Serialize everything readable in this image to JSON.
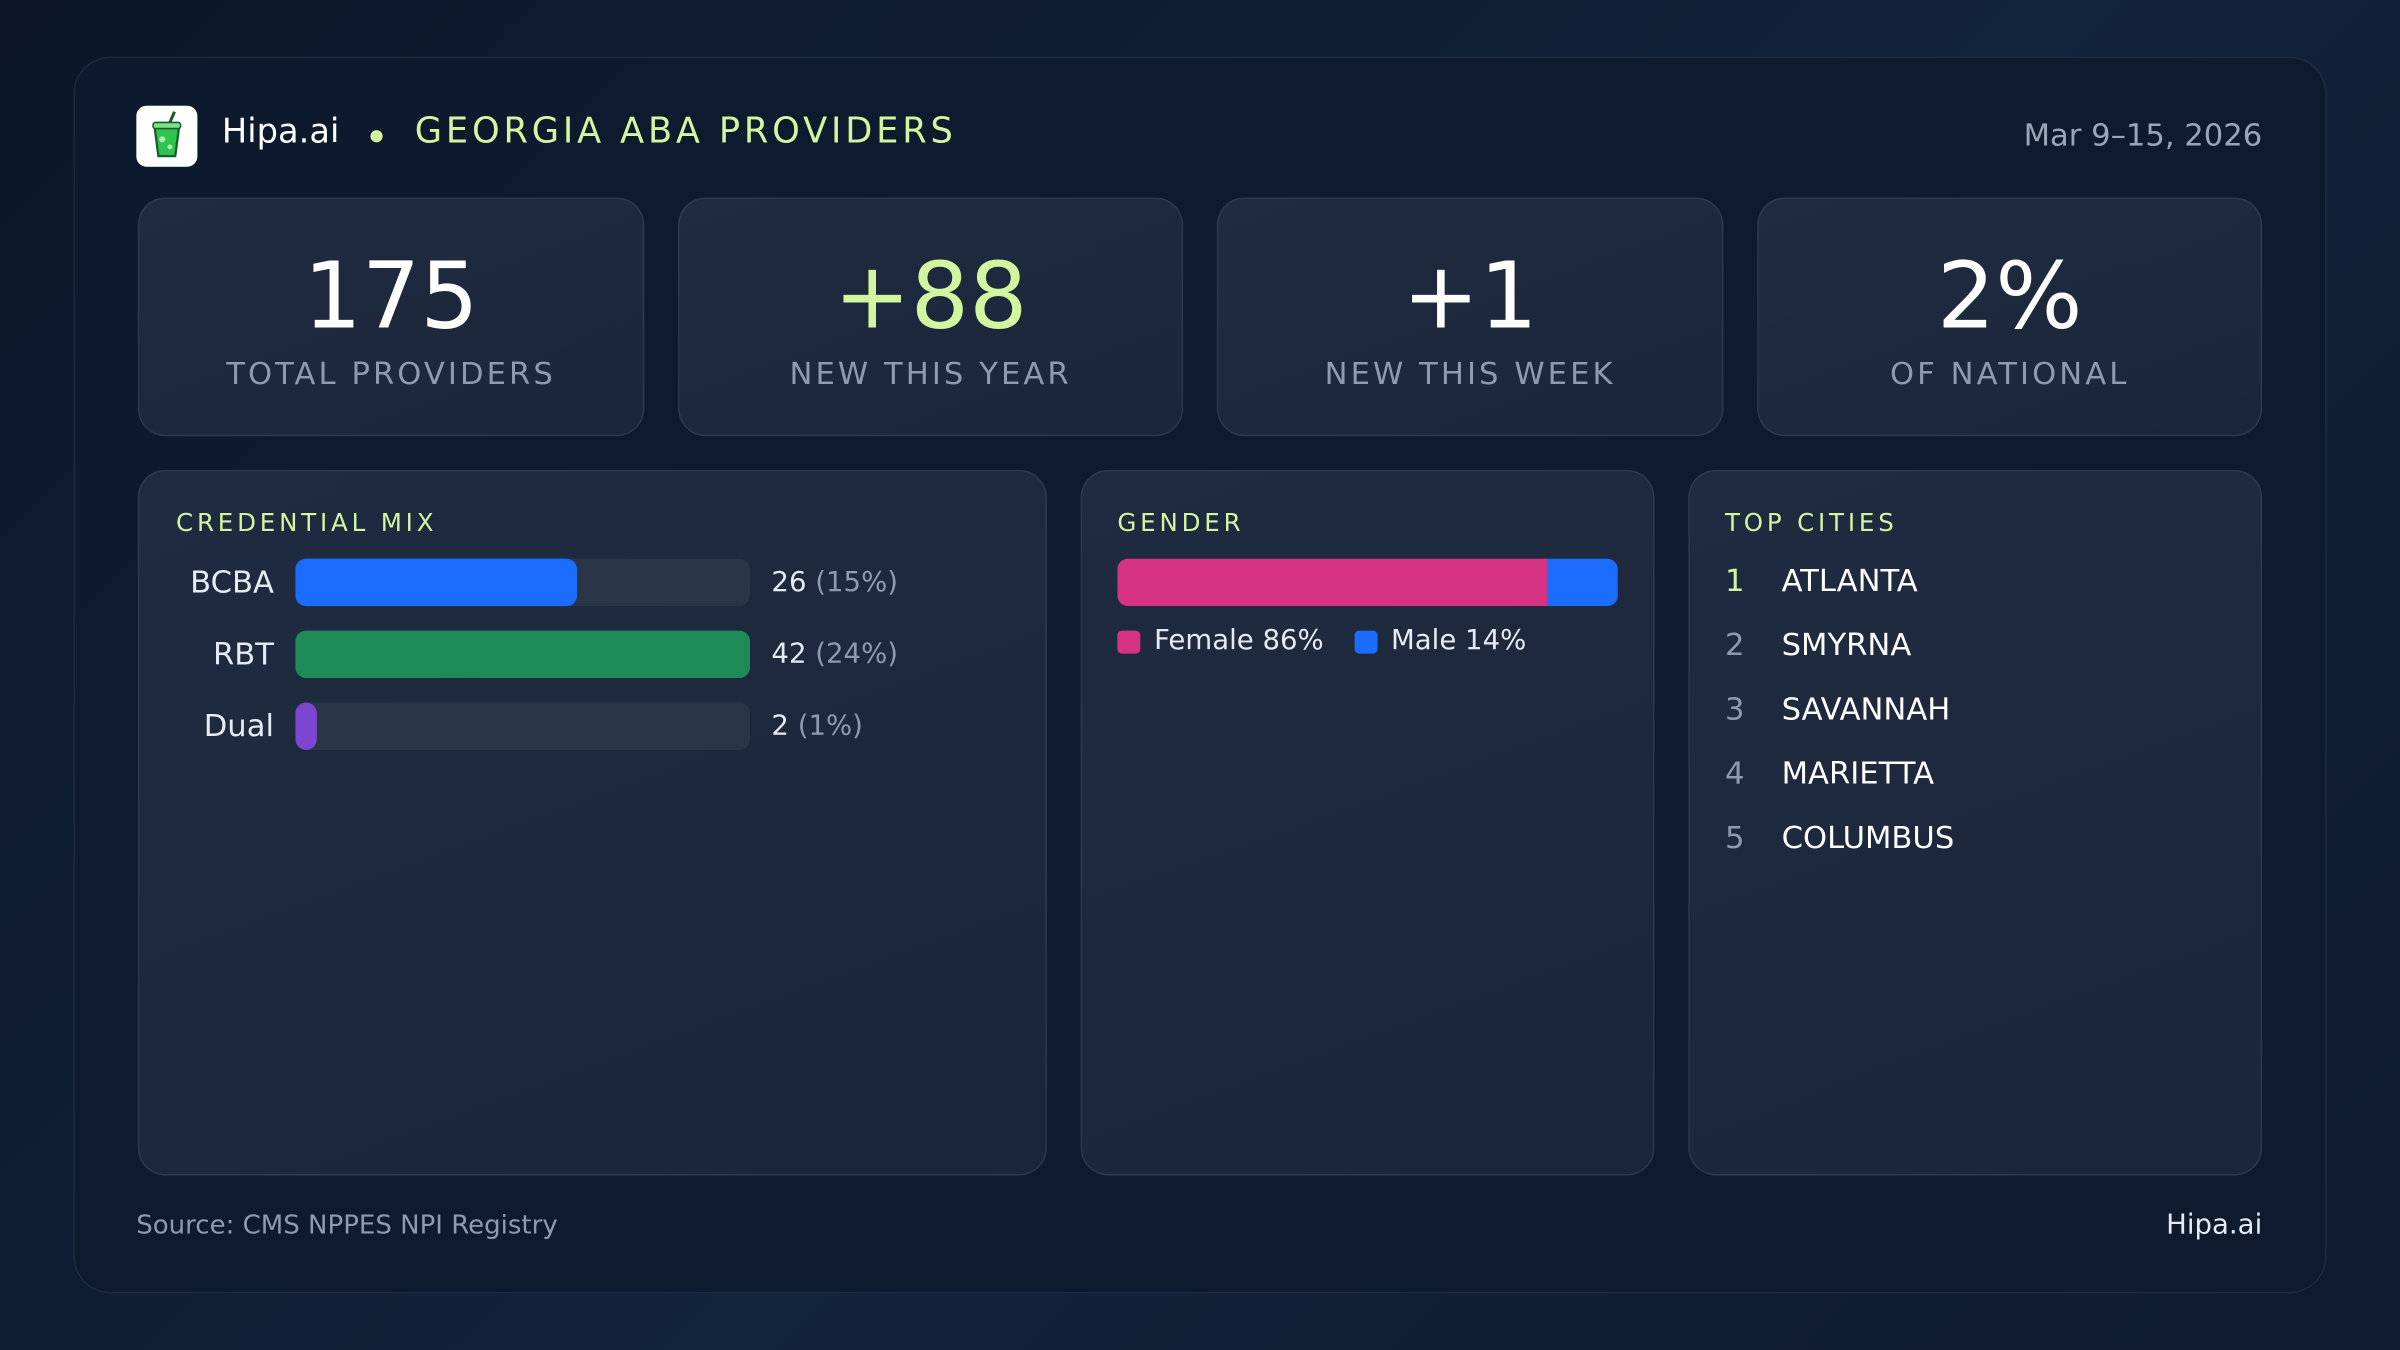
{
  "header": {
    "brand": "Hipa.ai",
    "title": "GEORGIA ABA PROVIDERS",
    "date": "Mar 9–15, 2026"
  },
  "kpis": [
    {
      "value": "175",
      "label": "TOTAL PROVIDERS"
    },
    {
      "value": "+88",
      "label": "NEW THIS YEAR"
    },
    {
      "value": "+1",
      "label": "NEW THIS WEEK"
    },
    {
      "value": "2%",
      "label": "OF NATIONAL"
    }
  ],
  "credential_mix": {
    "title": "CREDENTIAL MIX",
    "rows": [
      {
        "name": "BCBA",
        "count": 26,
        "share": "(15%)",
        "color": "#1a6dff"
      },
      {
        "name": "RBT",
        "count": 42,
        "share": "(24%)",
        "color": "#1e8a55"
      },
      {
        "name": "Dual",
        "count": 2,
        "share": "(1%)",
        "color": "#7b47d1"
      }
    ]
  },
  "gender": {
    "title": "GENDER",
    "segments": [
      {
        "name": "Female 86%",
        "value": 86,
        "color": "#d63384"
      },
      {
        "name": "Male 14%",
        "value": 14,
        "color": "#1a6dff"
      }
    ]
  },
  "top_cities": {
    "title": "TOP CITIES",
    "cities": [
      {
        "rank": 1,
        "name": "ATLANTA"
      },
      {
        "rank": 2,
        "name": "SMYRNA"
      },
      {
        "rank": 3,
        "name": "SAVANNAH"
      },
      {
        "rank": 4,
        "name": "MARIETTA"
      },
      {
        "rank": 5,
        "name": "COLUMBUS"
      }
    ]
  },
  "footer": {
    "source": "Source: CMS NPPES NPI Registry",
    "brand": "Hipa.ai"
  }
}
